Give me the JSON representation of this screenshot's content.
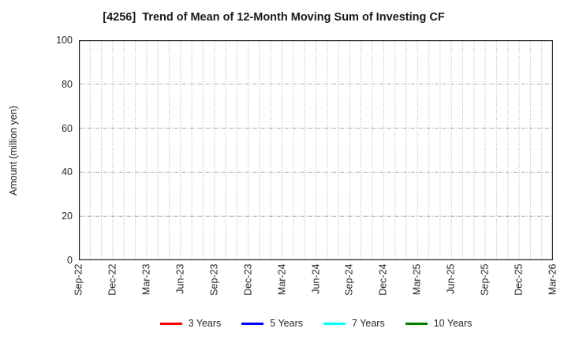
{
  "header": {
    "title": "[4256]  Trend of Mean of 12-Month Moving Sum of Investing CF"
  },
  "chart_data": {
    "type": "line",
    "title": "[4256]  Trend of Mean of 12-Month Moving Sum of Investing CF",
    "xlabel": "",
    "ylabel": "Amount (million yen)",
    "ylim": [
      0,
      100
    ],
    "y_ticks": [
      0,
      20,
      40,
      60,
      80,
      100
    ],
    "x_tick_labels": [
      "Sep-22",
      "Dec-22",
      "Mar-23",
      "Jun-23",
      "Sep-23",
      "Dec-23",
      "Mar-24",
      "Jun-24",
      "Sep-24",
      "Dec-24",
      "Mar-25",
      "Jun-25",
      "Sep-25",
      "Dec-25",
      "Mar-26"
    ],
    "x_minor_intervals_total": 42,
    "grid": true,
    "legend_position": "bottom",
    "series": [
      {
        "name": "3 Years",
        "color": "#ff0000",
        "x": [],
        "values": []
      },
      {
        "name": "5 Years",
        "color": "#0000ff",
        "x": [],
        "values": []
      },
      {
        "name": "7 Years",
        "color": "#00ffff",
        "x": [],
        "values": []
      },
      {
        "name": "10 Years",
        "color": "#008000",
        "x": [],
        "values": []
      }
    ],
    "note_colors": {
      "axis_border": "#1a1a1a",
      "grid_vertical_dotted": "#a3a3a3",
      "grid_horizontal_dashdot": "#ababab"
    }
  }
}
